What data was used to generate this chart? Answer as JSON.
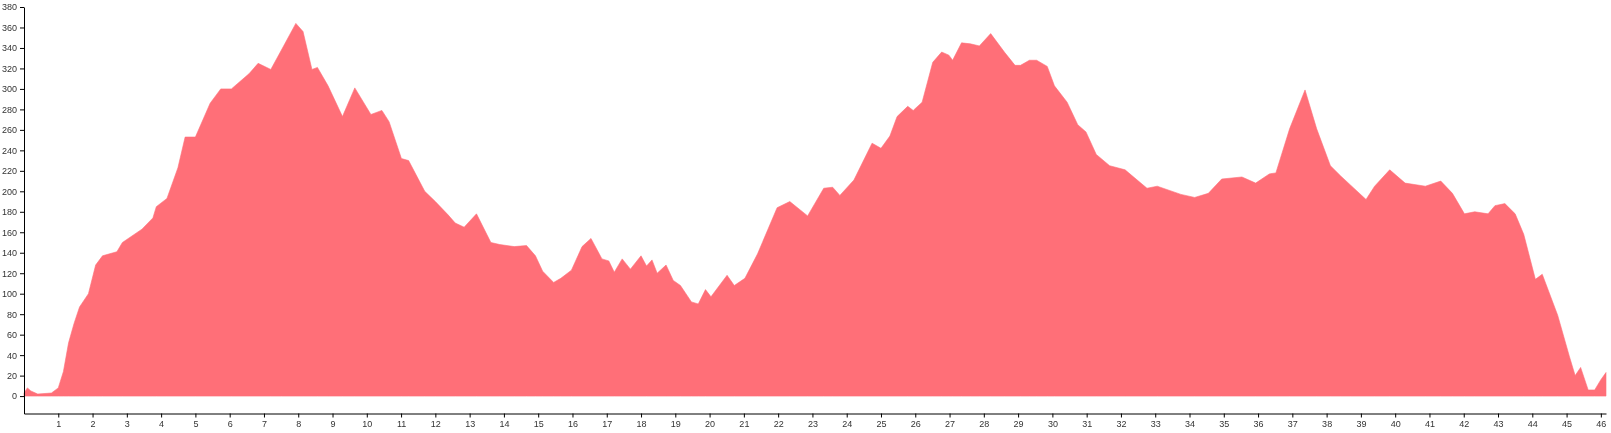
{
  "chart_data": {
    "type": "area",
    "color": "#ff6f78",
    "x": [
      0,
      0.1,
      0.2,
      0.4,
      0.8,
      1,
      1.15,
      1.3,
      1.46,
      1.62,
      1.88,
      2.09,
      2.29,
      2.71,
      2.87,
      3.44,
      3.76,
      3.86,
      4.17,
      4.49,
      4.7,
      5,
      5.43,
      5.74,
      6.05,
      6.57,
      6.83,
      7.2,
      7.51,
      7.93,
      8.14,
      8.4,
      8.56,
      8.87,
      9.29,
      9.65,
      10.12,
      10.44,
      10.65,
      11.01,
      11.22,
      11.69,
      12,
      12.37,
      12.58,
      12.84,
      13.2,
      13.62,
      13.88,
      14.3,
      14.66,
      14.92,
      15.13,
      15.45,
      15.66,
      15.97,
      16.28,
      16.54,
      16.86,
      17.06,
      17.22,
      17.45,
      17.69,
      18,
      18.16,
      18.32,
      18.47,
      18.73,
      18.94,
      19.15,
      19.47,
      19.67,
      19.88,
      20.04,
      20.51,
      20.72,
      21.03,
      21.4,
      21.97,
      22.34,
      22.86,
      23.33,
      23.59,
      23.8,
      24.21,
      24.74,
      25,
      25.26,
      25.47,
      25.78,
      25.94,
      26.2,
      26.51,
      26.77,
      26.98,
      27.09,
      27.35,
      27.61,
      27.87,
      28.2,
      28.6,
      28.91,
      29.07,
      29.33,
      29.54,
      29.85,
      30.06,
      30.43,
      30.74,
      30.98,
      31.28,
      31.67,
      32.12,
      32.76,
      33.06,
      33.75,
      34.15,
      34.55,
      34.94,
      35.53,
      35.93,
      36.33,
      36.52,
      36.92,
      37.37,
      37.71,
      38.11,
      38.41,
      38.7,
      39.15,
      39.4,
      39.84,
      40.29,
      40.88,
      41.33,
      41.67,
      42.02,
      42.32,
      42.71,
      42.91,
      43.2,
      43.5,
      43.75,
      44.09,
      44.29,
      44.74,
      45.08,
      45.25,
      45.41,
      45.63,
      45.82,
      46,
      46.15
    ],
    "values": [
      3,
      8,
      5,
      2,
      3,
      8,
      24,
      52,
      71,
      87,
      100,
      128,
      137,
      141,
      150,
      163,
      174,
      185,
      193,
      223,
      253,
      253,
      286,
      300,
      300,
      315,
      325,
      319,
      338,
      364,
      356,
      319,
      321,
      303,
      273,
      301,
      275,
      279,
      268,
      232,
      230,
      200,
      190,
      177,
      169,
      165,
      178,
      150,
      148,
      146,
      147,
      137,
      122,
      111,
      115,
      123,
      146,
      154,
      134,
      132,
      121,
      134,
      124,
      137,
      127,
      133,
      120,
      128,
      113,
      108,
      92,
      90,
      104,
      97,
      118,
      108,
      115,
      139,
      184,
      190,
      176,
      203,
      204,
      196,
      211,
      247,
      242,
      254,
      273,
      283,
      279,
      287,
      326,
      336,
      333,
      328,
      345,
      344,
      342,
      354,
      336,
      323,
      323,
      328,
      328,
      322,
      303,
      287,
      265,
      258,
      236,
      225,
      221,
      203,
      205,
      197,
      194,
      198,
      212,
      214,
      208,
      217,
      218,
      261,
      299,
      261,
      225,
      215,
      206,
      192,
      205,
      221,
      208,
      205,
      210,
      198,
      178,
      180,
      178,
      186,
      188,
      178,
      158,
      114,
      119,
      79,
      39,
      20,
      28,
      6,
      6,
      16,
      23
    ],
    "xlim": [
      0,
      46.15
    ],
    "xticks": [
      1,
      2,
      3,
      4,
      5,
      6,
      7,
      8,
      9,
      10,
      11,
      12,
      13,
      14,
      15,
      16,
      17,
      18,
      19,
      20,
      21,
      22,
      23,
      24,
      25,
      26,
      27,
      28,
      29,
      30,
      31,
      32,
      33,
      34,
      35,
      36,
      37,
      38,
      39,
      40,
      41,
      42,
      43,
      44,
      45,
      46
    ],
    "ylim": [
      -17,
      380
    ],
    "yticks": [
      0,
      20,
      40,
      60,
      80,
      100,
      120,
      140,
      160,
      180,
      200,
      220,
      240,
      260,
      280,
      300,
      320,
      340,
      360,
      380
    ]
  }
}
